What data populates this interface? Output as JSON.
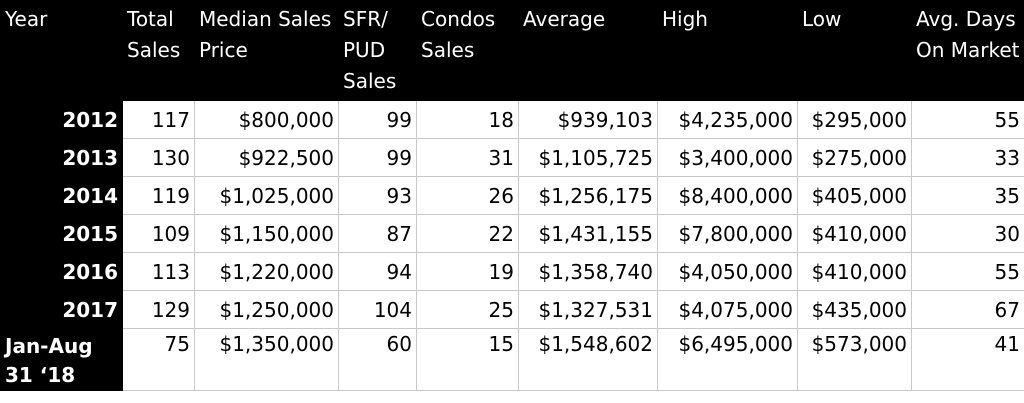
{
  "table": {
    "headers": [
      "Year",
      "Total Sales",
      "Median Sales Price",
      "SFR/ PUD Sales",
      "Condos Sales",
      "Average",
      "High",
      "Low",
      "Avg. Days On Market"
    ],
    "rows": [
      [
        "2012",
        "117",
        "$800,000",
        "99",
        "18",
        "$939,103",
        "$4,235,000",
        "$295,000",
        "55"
      ],
      [
        "2013",
        "130",
        "$922,500",
        "99",
        "31",
        "$1,105,725",
        "$3,400,000",
        "$275,000",
        "33"
      ],
      [
        "2014",
        "119",
        "$1,025,000",
        "93",
        "26",
        "$1,256,175",
        "$8,400,000",
        "$405,000",
        "35"
      ],
      [
        "2015",
        "109",
        "$1,150,000",
        "87",
        "22",
        "$1,431,155",
        "$7,800,000",
        "$410,000",
        "30"
      ],
      [
        "2016",
        "113",
        "$1,220,000",
        "94",
        "19",
        "$1,358,740",
        "$4,050,000",
        "$410,000",
        "55"
      ],
      [
        "2017",
        "129",
        "$1,250,000",
        "104",
        "25",
        "$1,327,531",
        "$4,075,000",
        "$435,000",
        "67"
      ],
      [
        "Jan-Aug 31 ‘18",
        "75",
        "$1,350,000",
        "60",
        "15",
        "$1,548,602",
        "$6,495,000",
        "$573,000",
        "41"
      ]
    ]
  },
  "colors": {
    "header_bg": "#000000",
    "header_text": "#ffffff",
    "cell_bg": "#ffffff",
    "grid": "#c8c8c8"
  }
}
